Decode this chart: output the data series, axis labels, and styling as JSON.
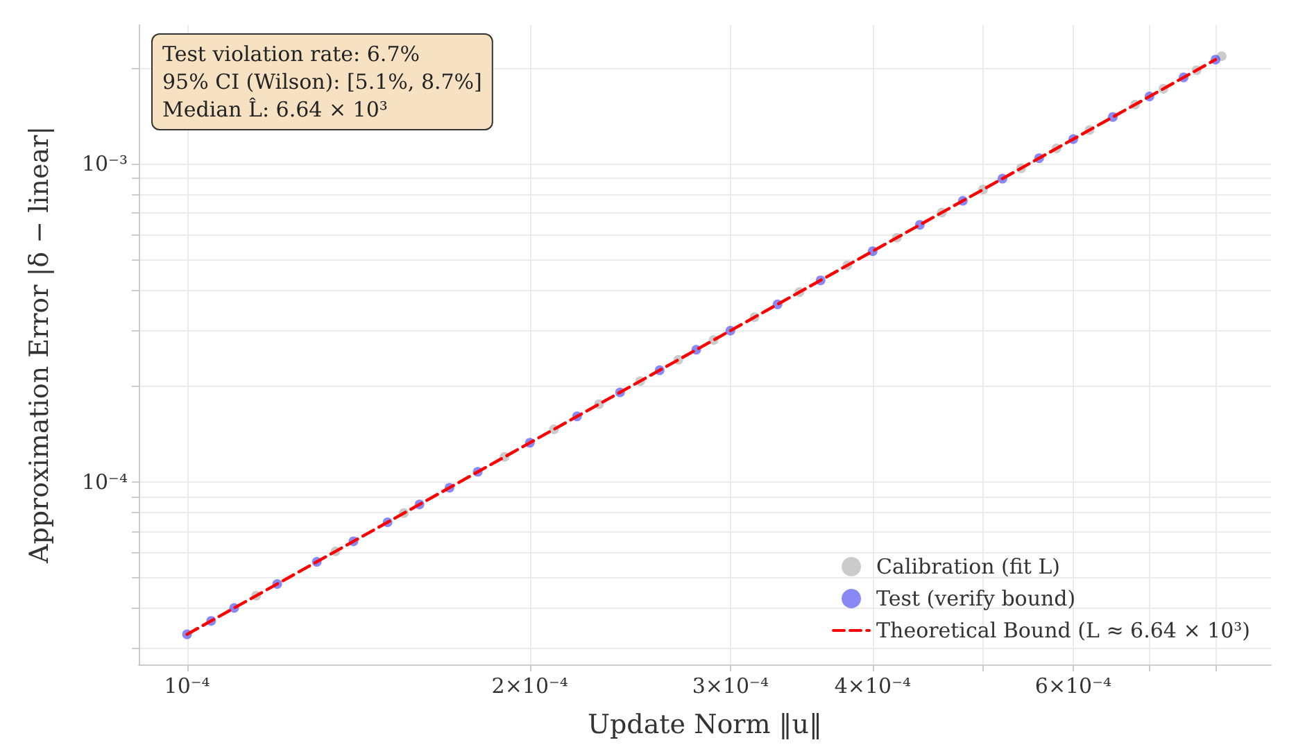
{
  "chart_data": {
    "type": "scatter",
    "xlabel": "Update Norm ‖u‖",
    "ylabel": "Approximation Error |δ − linear|",
    "annotations": [
      "Test violation rate: 6.7%",
      "95% CI (Wilson): [5.1%, 8.7%]",
      "Median L̂: 6.64 × 10³"
    ],
    "log": "xy",
    "grid": true,
    "legend": "bottom right",
    "marker": "circle",
    "xlim": [
      9.07e-05,
      0.000895
    ],
    "xticks": [
      {
        "value": 0.0001,
        "label": "10⁻⁴"
      },
      {
        "value": 0.0002,
        "label": "2×10⁻⁴"
      },
      {
        "value": 0.0003,
        "label": "3×10⁻⁴"
      },
      {
        "value": 0.0004,
        "label": "4×10⁻⁴"
      },
      {
        "value": 0.0005,
        "label": null
      },
      {
        "value": 0.0006,
        "label": "6×10⁻⁴"
      },
      {
        "value": 0.0007,
        "label": null
      },
      {
        "value": 0.0008,
        "label": null
      }
    ],
    "ylim": [
      2.67e-05,
      0.00273
    ],
    "yticks": [
      {
        "value": 3e-05,
        "label": null
      },
      {
        "value": 4e-05,
        "label": null
      },
      {
        "value": 5e-05,
        "label": null
      },
      {
        "value": 6e-05,
        "label": null
      },
      {
        "value": 7e-05,
        "label": null
      },
      {
        "value": 8e-05,
        "label": null
      },
      {
        "value": 9e-05,
        "label": null
      },
      {
        "value": 0.0001,
        "label": "10⁻⁴"
      },
      {
        "value": 0.0002,
        "label": null
      },
      {
        "value": 0.0003,
        "label": null
      },
      {
        "value": 0.0004,
        "label": null
      },
      {
        "value": 0.0005,
        "label": null
      },
      {
        "value": 0.0006,
        "label": null
      },
      {
        "value": 0.0007,
        "label": null
      },
      {
        "value": 0.0008,
        "label": null
      },
      {
        "value": 0.0009,
        "label": null
      },
      {
        "value": 0.001,
        "label": "10⁻³"
      },
      {
        "value": 0.002,
        "label": null
      }
    ],
    "series": [
      {
        "name": "Calibration (fit L)",
        "type": "scatter",
        "color": "#a8a8a8",
        "x": [
          0.000115,
          0.000135,
          0.000155,
          0.00019,
          0.00021,
          0.00023,
          0.00025,
          0.00027,
          0.00029,
          0.000315,
          0.000345,
          0.00038,
          0.00042,
          0.00046,
          0.0005,
          0.00054,
          0.00058,
          0.00062,
          0.00068,
          0.00072,
          0.00077,
          0.00081
        ],
        "values": [
          4.39e-05,
          6.05e-05,
          7.98e-05,
          0.0001199,
          0.0001464,
          0.0001756,
          0.0002075,
          0.000242,
          0.0002792,
          0.0003294,
          0.0003952,
          0.0004794,
          0.0005856,
          0.0007025,
          0.00083,
          0.0009681,
          0.001117,
          0.001276,
          0.001535,
          0.001721,
          0.001968,
          0.002178
        ]
      },
      {
        "name": "Test (verify bound)",
        "type": "scatter",
        "color": "#3b3bf0",
        "x": [
          0.0001,
          0.000105,
          0.00011,
          0.00012,
          0.00013,
          0.00014,
          0.00015,
          0.00016,
          0.00017,
          0.00018,
          0.0002,
          0.00022,
          0.00024,
          0.00026,
          0.00028,
          0.0003,
          0.00033,
          0.00036,
          0.0004,
          0.00044,
          0.00048,
          0.00052,
          0.00056,
          0.0006,
          0.00065,
          0.0007,
          0.00075,
          0.0008
        ],
        "values": [
          3.32e-05,
          3.66e-05,
          4.02e-05,
          4.78e-05,
          5.61e-05,
          6.51e-05,
          7.47e-05,
          8.5e-05,
          9.59e-05,
          0.0001076,
          0.0001328,
          0.0001607,
          0.0001912,
          0.0002244,
          0.0002603,
          0.0002988,
          0.0003615,
          0.0004303,
          0.0005312,
          0.0006428,
          0.0007649,
          0.0008977,
          0.001041,
          0.001195,
          0.001403,
          0.001627,
          0.001868,
          0.002125
        ]
      },
      {
        "name": "Theoretical Bound (L ≈ 6.64 × 10³)",
        "type": "line",
        "color": "#ff0000",
        "line_style": "dashed",
        "marker": "none",
        "x": [
          0.0001,
          0.0008
        ],
        "values": [
          3.32e-05,
          0.002125
        ]
      }
    ]
  }
}
